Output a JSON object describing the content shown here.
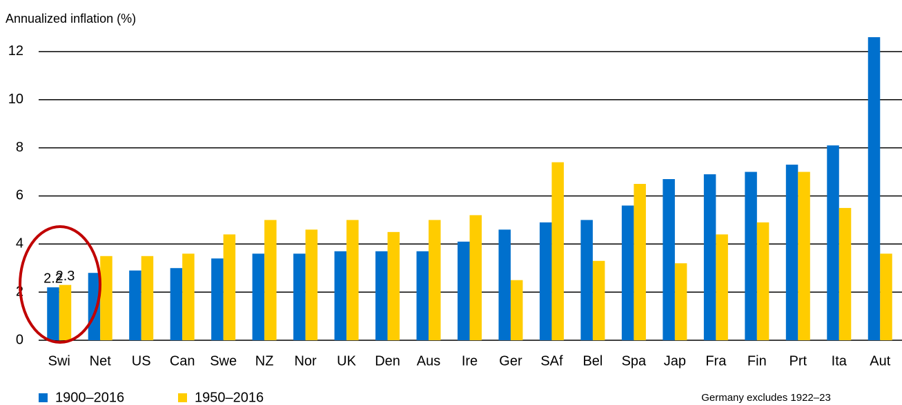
{
  "chart_data": {
    "type": "bar",
    "title": "Annualized inflation (%)",
    "note": "Germany excludes 1922–23",
    "categories": [
      "Swi",
      "Net",
      "US",
      "Can",
      "Swe",
      "NZ",
      "Nor",
      "UK",
      "Den",
      "Aus",
      "Ire",
      "Ger",
      "SAf",
      "Bel",
      "Spa",
      "Jap",
      "Fra",
      "Fin",
      "Prt",
      "Ita",
      "Aut"
    ],
    "series": [
      {
        "name": "1900–2016",
        "color": "#0070cd",
        "values": [
          2.2,
          2.8,
          2.9,
          3.0,
          3.4,
          3.6,
          3.6,
          3.7,
          3.7,
          3.7,
          4.1,
          4.6,
          4.9,
          5.0,
          5.6,
          6.7,
          6.9,
          7.0,
          7.3,
          8.1,
          12.6
        ],
        "value_labels": [
          "2.2",
          null,
          null,
          null,
          null,
          null,
          null,
          null,
          null,
          null,
          null,
          null,
          null,
          null,
          null,
          null,
          null,
          null,
          null,
          null,
          null
        ]
      },
      {
        "name": "1950–2016",
        "color": "#ffcc00",
        "values": [
          2.3,
          3.5,
          3.5,
          3.6,
          4.4,
          5.0,
          4.6,
          5.0,
          4.5,
          5.0,
          5.2,
          2.5,
          7.4,
          3.3,
          6.5,
          3.2,
          4.4,
          4.9,
          7.0,
          5.5,
          3.6
        ],
        "value_labels": [
          "2.3",
          null,
          null,
          null,
          null,
          null,
          null,
          null,
          null,
          null,
          null,
          null,
          null,
          null,
          null,
          null,
          null,
          null,
          null,
          null,
          null
        ]
      }
    ],
    "ylim": [
      0,
      13
    ],
    "yticks": [
      0,
      2,
      4,
      6,
      8,
      10,
      12
    ],
    "grid": true,
    "legend": "bottom-left"
  }
}
